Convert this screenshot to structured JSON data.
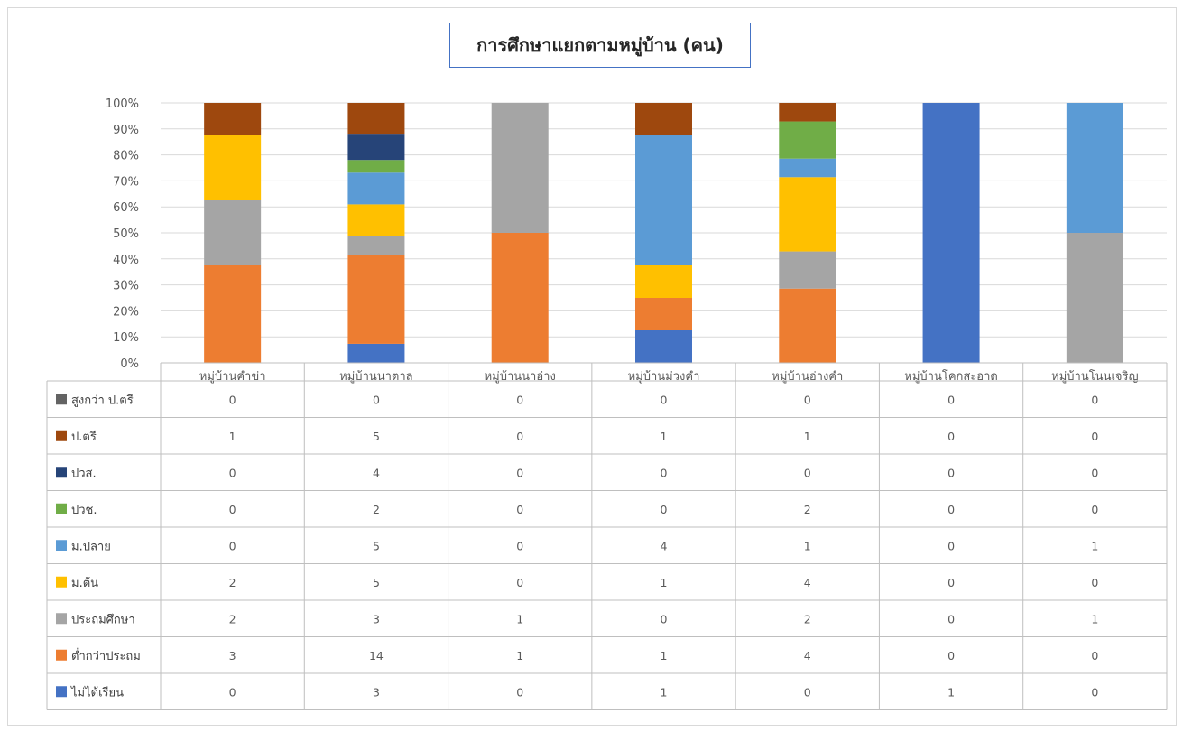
{
  "chart_data": {
    "type": "bar",
    "stacked": "percent",
    "title": "การศึกษาแยกตามหมู่บ้าน (คน)",
    "categories": [
      "หมู่บ้านคำข่า",
      "หมู่บ้านนาตาล",
      "หมู่บ้านนาอ่าง",
      "หมู่บ้านม่วงคำ",
      "หมู่บ้านอ่างคำ",
      "หมู่บ้านโคกสะอาด",
      "หมู่บ้านโนนเจริญ"
    ],
    "y_ticks": [
      "0%",
      "10%",
      "20%",
      "30%",
      "40%",
      "50%",
      "60%",
      "70%",
      "80%",
      "90%",
      "100%"
    ],
    "ylim": [
      0,
      100
    ],
    "grid": true,
    "legend": "data-table",
    "series": [
      {
        "name": "สูงกว่า ป.ตรี",
        "color": "#636363",
        "values": [
          0,
          0,
          0,
          0,
          0,
          0,
          0
        ]
      },
      {
        "name": "ป.ตรี",
        "color": "#9e480e",
        "values": [
          1,
          5,
          0,
          1,
          1,
          0,
          0
        ]
      },
      {
        "name": "ปวส.",
        "color": "#264478",
        "values": [
          0,
          4,
          0,
          0,
          0,
          0,
          0
        ]
      },
      {
        "name": "ปวช.",
        "color": "#70ad47",
        "values": [
          0,
          2,
          0,
          0,
          2,
          0,
          0
        ]
      },
      {
        "name": "ม.ปลาย",
        "color": "#5b9bd5",
        "values": [
          0,
          5,
          0,
          4,
          1,
          0,
          1
        ]
      },
      {
        "name": "ม.ต้น",
        "color": "#ffc000",
        "values": [
          2,
          5,
          0,
          1,
          4,
          0,
          0
        ]
      },
      {
        "name": "ประถมศึกษา",
        "color": "#a5a5a5",
        "values": [
          2,
          3,
          1,
          0,
          2,
          0,
          1
        ]
      },
      {
        "name": "ต่ำกว่าประถม",
        "color": "#ed7d31",
        "values": [
          3,
          14,
          1,
          1,
          4,
          0,
          0
        ]
      },
      {
        "name": "ไม่ได้เรียน",
        "color": "#4472c4",
        "values": [
          0,
          3,
          0,
          1,
          0,
          1,
          0
        ]
      }
    ]
  }
}
